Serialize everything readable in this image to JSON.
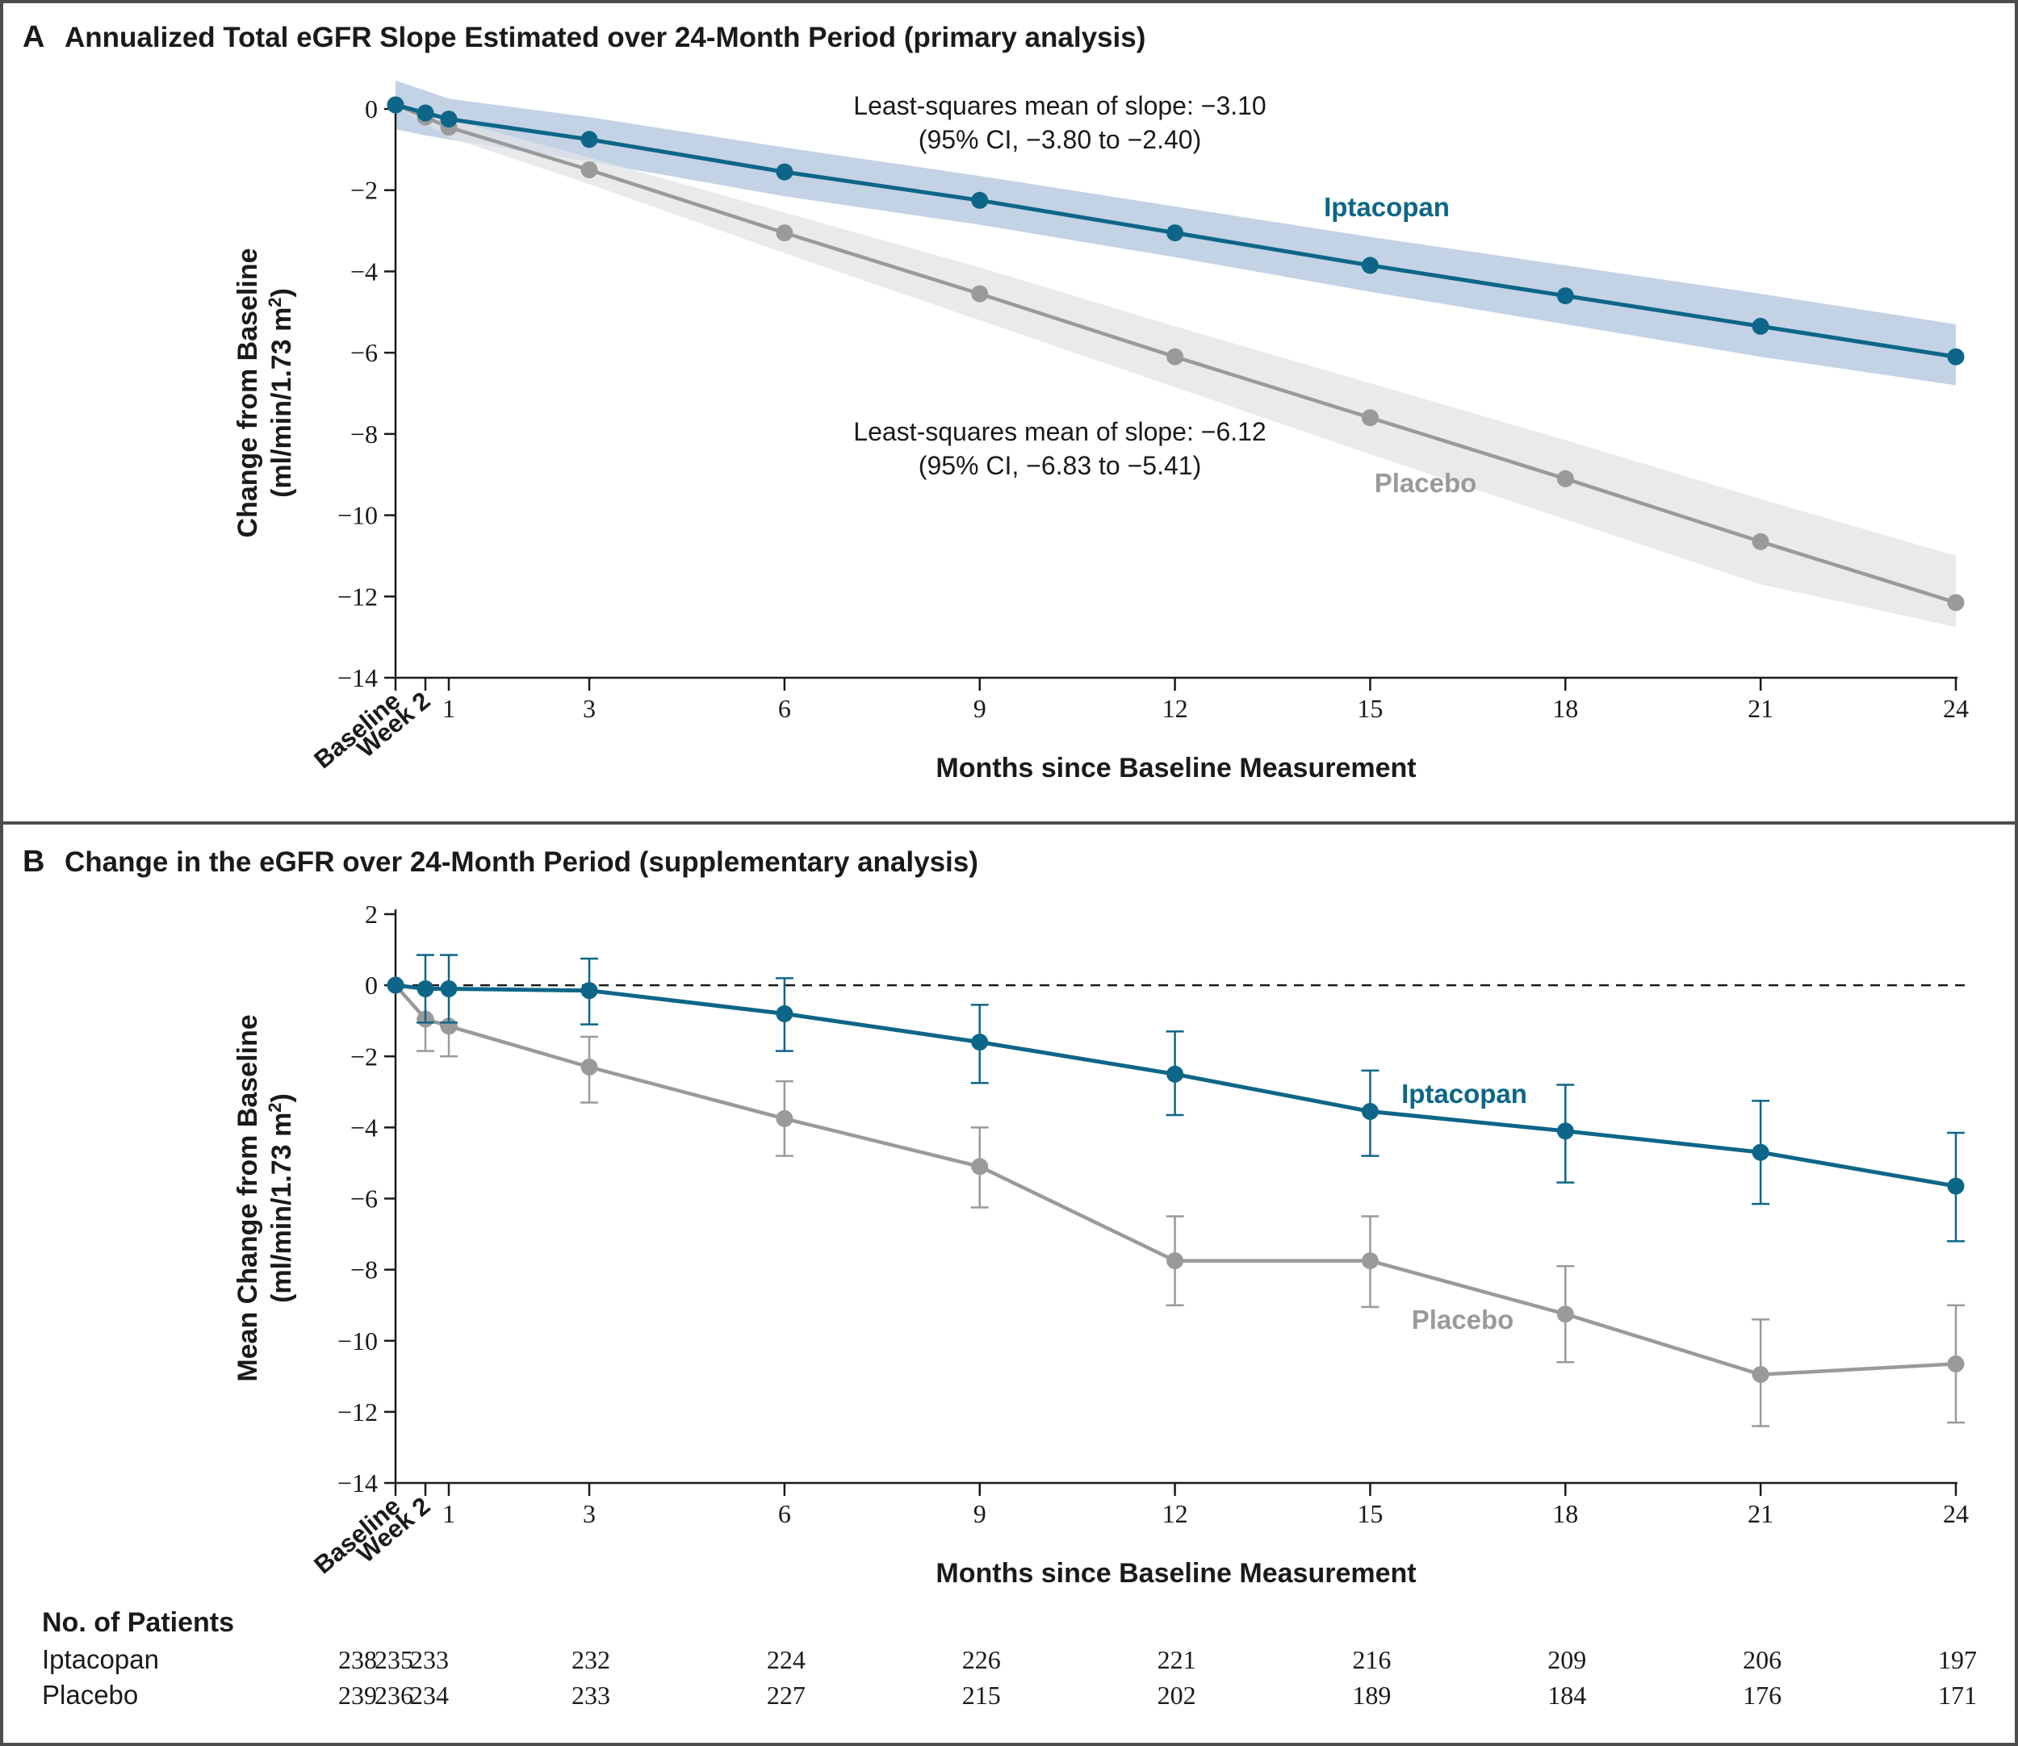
{
  "panel_a": {
    "letter": "A",
    "title": "Annualized Total eGFR Slope Estimated over 24-Month Period (primary analysis)"
  },
  "panel_b": {
    "letter": "B",
    "title": "Change in the eGFR over 24-Month Period (supplementary analysis)"
  },
  "colors": {
    "iptacopan": "#0d6688",
    "placebo": "#9a9a9a",
    "iptacopan_band": "#bccde2",
    "placebo_band": "#e2e3e4",
    "border": "#4d4d4d"
  },
  "chart_data": [
    {
      "type": "line",
      "id": "panel_a",
      "title": "Annualized Total eGFR Slope Estimated over 24-Month Period (primary analysis)",
      "xlabel": "Months since Baseline Measurement",
      "ylabel_line1": "Change from Baseline",
      "ylabel_line2_prefix": "(ml/min/1.73 m",
      "ylabel_line2_sup": "2",
      "ylabel_line2_suffix": ")",
      "ylim": [
        -14,
        0
      ],
      "xlim": [
        0,
        24
      ],
      "y_ticks": [
        0,
        -2,
        -4,
        -6,
        -8,
        -10,
        -12,
        -14
      ],
      "y_tick_labels": [
        "0",
        "−2",
        "−4",
        "−6",
        "−8",
        "−10",
        "−12",
        "−14"
      ],
      "x_ticks": [
        0,
        0.5,
        1,
        3,
        6,
        9,
        12,
        15,
        18,
        21,
        24
      ],
      "x_tick_labels": [
        "",
        "",
        "1",
        "3",
        "6",
        "9",
        "12",
        "15",
        "18",
        "21",
        "24"
      ],
      "x_rotated_labels": [
        {
          "x": 0,
          "label": "Baseline"
        },
        {
          "x": 0.5,
          "label": "Week 2"
        }
      ],
      "x": [
        0,
        0.5,
        1,
        3,
        6,
        9,
        12,
        15,
        18,
        21,
        24
      ],
      "series": [
        {
          "name": "Iptacopan",
          "values": [
            0.1,
            -0.1,
            -0.25,
            -0.75,
            -1.55,
            -2.25,
            -3.05,
            -3.85,
            -4.6,
            -5.35,
            -6.1
          ],
          "band_upper": [
            0.7,
            0.45,
            0.25,
            -0.2,
            -0.95,
            -1.65,
            -2.4,
            -3.15,
            -3.85,
            -4.55,
            -5.3
          ],
          "band_lower": [
            -0.5,
            -0.65,
            -0.75,
            -1.3,
            -2.15,
            -2.85,
            -3.65,
            -4.5,
            -5.3,
            -6.1,
            -6.8
          ]
        },
        {
          "name": "Placebo",
          "values": [
            0.1,
            -0.2,
            -0.45,
            -1.5,
            -3.05,
            -4.55,
            -6.1,
            -7.6,
            -9.1,
            -10.65,
            -12.15
          ],
          "band_upper": [
            0.1,
            -0.05,
            -0.25,
            -1.2,
            -2.55,
            -3.9,
            -5.35,
            -6.75,
            -8.15,
            -9.6,
            -11.0
          ],
          "band_lower": [
            0.05,
            -0.35,
            -0.7,
            -1.85,
            -3.55,
            -5.2,
            -6.85,
            -8.5,
            -10.1,
            -11.7,
            -12.75
          ]
        }
      ],
      "annotations": [
        {
          "line1": "Least-squares mean of slope: −3.10",
          "line2": "(95% CI, −3.80 to −2.40)"
        },
        {
          "line1": "Least-squares mean of slope: −6.12",
          "line2": "(95% CI, −6.83 to −5.41)"
        }
      ],
      "series_labels": [
        "Iptacopan",
        "Placebo"
      ]
    },
    {
      "type": "line",
      "id": "panel_b",
      "title": "Change in the eGFR over 24-Month Period (supplementary analysis)",
      "xlabel": "Months since Baseline Measurement",
      "ylabel_line1": "Mean Change from Baseline",
      "ylabel_line2_prefix": "(ml/min/1.73 m",
      "ylabel_line2_sup": "2",
      "ylabel_line2_suffix": ")",
      "ylim": [
        -14,
        2
      ],
      "xlim": [
        0,
        24
      ],
      "reference_line": 0,
      "y_ticks": [
        2,
        0,
        -2,
        -4,
        -6,
        -8,
        -10,
        -12,
        -14
      ],
      "y_tick_labels": [
        "2",
        "0",
        "−2",
        "−4",
        "−6",
        "−8",
        "−10",
        "−12",
        "−14"
      ],
      "x_ticks": [
        0,
        0.5,
        1,
        3,
        6,
        9,
        12,
        15,
        18,
        21,
        24
      ],
      "x_tick_labels": [
        "",
        "",
        "1",
        "3",
        "6",
        "9",
        "12",
        "15",
        "18",
        "21",
        "24"
      ],
      "x_rotated_labels": [
        {
          "x": 0,
          "label": "Baseline"
        },
        {
          "x": 0.5,
          "label": "Week 2"
        }
      ],
      "x": [
        0,
        0.5,
        1,
        3,
        6,
        9,
        12,
        15,
        18,
        21,
        24
      ],
      "series": [
        {
          "name": "Iptacopan",
          "values": [
            0,
            -0.1,
            -0.1,
            -0.15,
            -0.8,
            -1.6,
            -2.5,
            -3.55,
            -4.1,
            -4.7,
            -5.65
          ],
          "err_upper": [
            0,
            0.85,
            0.85,
            0.75,
            0.2,
            -0.55,
            -1.3,
            -2.4,
            -2.8,
            -3.25,
            -4.15
          ],
          "err_lower": [
            0,
            -1.05,
            -1.05,
            -1.1,
            -1.85,
            -2.75,
            -3.65,
            -4.8,
            -5.55,
            -6.15,
            -7.2
          ]
        },
        {
          "name": "Placebo",
          "values": [
            0,
            -0.95,
            -1.15,
            -2.3,
            -3.75,
            -5.1,
            -7.75,
            -7.75,
            -9.25,
            -10.95,
            -10.65
          ],
          "err_upper": [
            0,
            -0.95,
            -1.15,
            -1.45,
            -2.7,
            -4.0,
            -6.5,
            -6.5,
            -7.9,
            -9.4,
            -9.0
          ],
          "err_lower": [
            0,
            -1.85,
            -2.0,
            -3.3,
            -4.8,
            -6.25,
            -9.0,
            -9.05,
            -10.6,
            -12.4,
            -12.3
          ]
        }
      ],
      "series_labels": [
        "Iptacopan",
        "Placebo"
      ]
    }
  ],
  "patients_table": {
    "header": "No. of Patients",
    "rows": [
      {
        "label": "Iptacopan",
        "counts": [
          "238",
          "235",
          "233",
          "232",
          "224",
          "226",
          "221",
          "216",
          "209",
          "206",
          "197"
        ]
      },
      {
        "label": "Placebo",
        "counts": [
          "239",
          "236",
          "234",
          "233",
          "227",
          "215",
          "202",
          "189",
          "184",
          "176",
          "171"
        ]
      }
    ]
  }
}
